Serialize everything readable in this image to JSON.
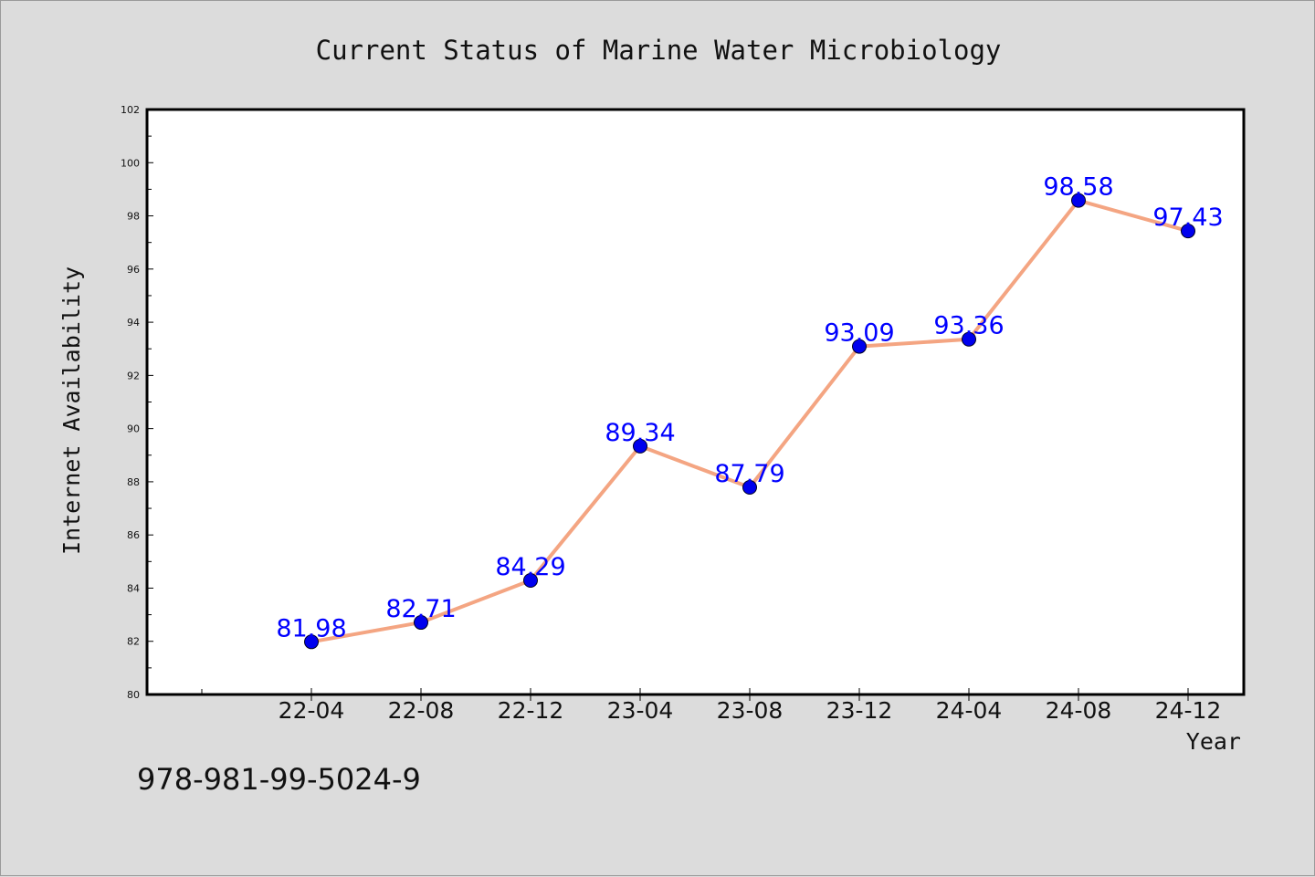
{
  "page": {
    "background": "#dcdcdc",
    "isbn": "978-981-99-5024-9"
  },
  "chart_data": {
    "type": "line",
    "title": "Current Status of Marine Water Microbiology",
    "xlabel": "Year",
    "ylabel": "Internet Availability",
    "categories": [
      "22-04",
      "22-08",
      "22-12",
      "23-04",
      "23-08",
      "23-12",
      "24-04",
      "24-08",
      "24-12"
    ],
    "series": [
      {
        "values": [
          81.98,
          82.71,
          84.29,
          89.34,
          87.79,
          93.09,
          93.36,
          98.58,
          97.43
        ],
        "line_color": "#f4a582",
        "marker_color": "#0000ee",
        "label_color": "#0000ff"
      }
    ],
    "ylim": [
      80,
      102
    ],
    "yticks": [
      80,
      82,
      84,
      86,
      88,
      90,
      92,
      94,
      96,
      98,
      100,
      102
    ],
    "grid": false,
    "legend": "none",
    "data_labels": true
  }
}
